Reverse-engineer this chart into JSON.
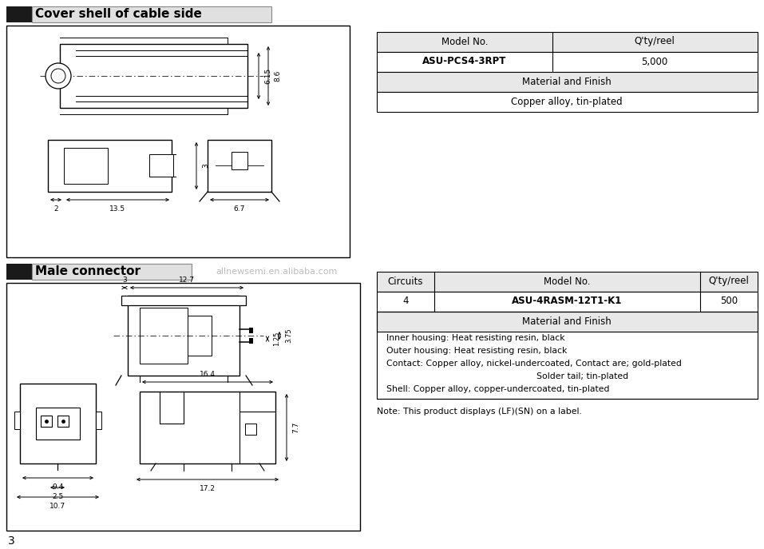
{
  "bg_color": "#ffffff",
  "title1": "Cover shell of cable side",
  "title2": "Male connector",
  "watermark": "allnewsemi.en.alibaba.com",
  "table1": {
    "col_headers": [
      "Model No.",
      "Q'ty/reel"
    ],
    "row1": [
      "ASU-PCS4-3RPT",
      "5,000"
    ],
    "row2_header": "Material and Finish",
    "row2_content": "Copper alloy, tin-plated"
  },
  "table2": {
    "col_headers": [
      "Circuits",
      "Model No.",
      "Q'ty/reel"
    ],
    "row1": [
      "4",
      "ASU-4RASM-12T1-K1",
      "500"
    ],
    "row2_header": "Material and Finish",
    "row2_content1": "Inner housing: Heat resisting resin, black",
    "row2_content2": "Outer housing: Heat resisting resin, black",
    "row2_content3": "Contact: Copper alloy, nickel-undercoated, Contact are; gold-plated",
    "row2_content4": "Solder tail; tin-plated",
    "row2_content5": "Shell: Copper alloy, copper-undercoated, tin-plated",
    "note": "Note: This product displays (LF)(SN) on a label."
  },
  "page_number": "3"
}
